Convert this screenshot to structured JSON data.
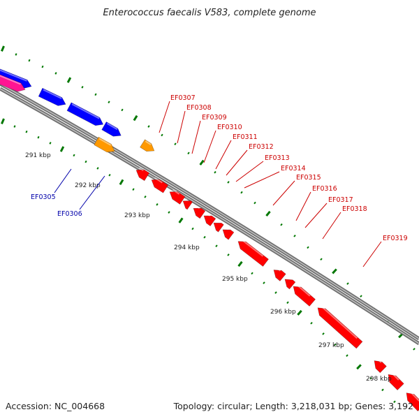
{
  "title": "Enterococcus faecalis V583, complete genome",
  "footer": {
    "accession": "Accession: NC_004668",
    "topology": "Topology: circular; Length: 3,218,031 bp; Genes: 3,192"
  },
  "colors": {
    "forward_gene": "#0000ff",
    "reverse_gene": "#ff0000",
    "forward_label": "#0000aa",
    "reverse_label": "#cc0000",
    "other_feature": "#ff9900",
    "pink_feature": "#ff1493",
    "backbone": "#888888",
    "ticks": "#007700"
  },
  "scale_labels": [
    "291 kbp",
    "292 kbp",
    "293 kbp",
    "294 kbp",
    "295 kbp",
    "296 kbp",
    "297 kbp",
    "298 kbp"
  ],
  "forward_labels": [
    "EF0305",
    "EF0306"
  ],
  "reverse_labels": [
    "EF0307",
    "EF0308",
    "EF0309",
    "EF0310",
    "EF0311",
    "EF0312",
    "EF0313",
    "EF0314",
    "EF0315",
    "EF0316",
    "EF0317",
    "EF0318",
    "EF0319"
  ]
}
